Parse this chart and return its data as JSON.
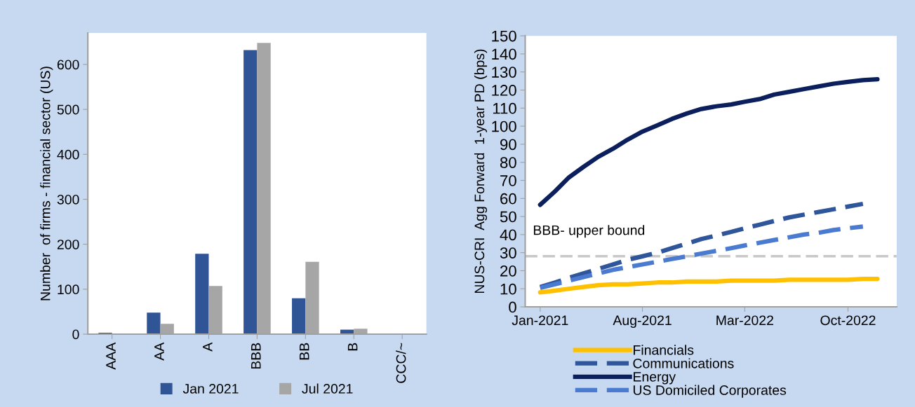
{
  "chart_data": [
    {
      "type": "bar",
      "ylabel": "Number  of firms - financial sector (US)",
      "categories": [
        "AAA",
        "AA",
        "A",
        "BBB",
        "BB",
        "B",
        "CCC/~"
      ],
      "series": [
        {
          "name": "Jan 2021",
          "color": "#2f5597",
          "values": [
            3,
            48,
            179,
            632,
            80,
            10,
            0
          ]
        },
        {
          "name": "Jul 2021",
          "color": "#a6a6a6",
          "values": [
            0,
            23,
            107,
            648,
            161,
            12,
            0
          ]
        }
      ],
      "ylim": [
        0,
        670
      ],
      "yticks": [
        0,
        100,
        200,
        300,
        400,
        500,
        600
      ],
      "grid": false,
      "legend": "bottom"
    },
    {
      "type": "line",
      "ylabel": "NUS-CRI  Agg Forward  1-year PD (bps)",
      "x": [
        "2021-01",
        "2021-02",
        "2021-03",
        "2021-04",
        "2021-05",
        "2021-06",
        "2021-07",
        "2021-08",
        "2021-09",
        "2021-10",
        "2021-11",
        "2021-12",
        "2022-01",
        "2022-02",
        "2022-03",
        "2022-04",
        "2022-05",
        "2022-06",
        "2022-07",
        "2022-08",
        "2022-09",
        "2022-10",
        "2022-11",
        "2022-12"
      ],
      "series": [
        {
          "name": "Financials",
          "color": "#ffc000",
          "line_style": "solid",
          "values": [
            8,
            9,
            10,
            11,
            12,
            12.5,
            12.5,
            13,
            13.5,
            13.5,
            14,
            14,
            14,
            14.5,
            14.5,
            14.5,
            14.5,
            15,
            15,
            15,
            15,
            15,
            15.5,
            15.5
          ]
        },
        {
          "name": "Communications",
          "color": "#2f559a",
          "line_style": "dashed",
          "values": [
            11,
            13.5,
            16,
            18.5,
            21,
            23.5,
            26,
            28,
            30,
            32.5,
            35,
            37.5,
            39.5,
            41.5,
            43.5,
            45.5,
            47.5,
            49.5,
            51,
            52.5,
            54,
            55.5,
            57,
            null
          ]
        },
        {
          "name": "Energy",
          "color": "#0a1f5c",
          "line_style": "solid",
          "values": [
            56.5,
            64,
            71.5,
            77.5,
            83,
            87.5,
            92.5,
            97,
            100.5,
            104,
            107,
            109.5,
            111,
            112,
            113.5,
            115,
            117.5,
            119,
            120.5,
            122,
            123.5,
            124.5,
            125.5,
            126
          ]
        },
        {
          "name": "US Domiciled Corporates",
          "color": "#4a7bd0",
          "line_style": "dashed",
          "values": [
            10.5,
            12.5,
            14.5,
            16.5,
            18.5,
            20.5,
            22,
            23.5,
            25,
            26.5,
            28,
            29.5,
            31,
            32.5,
            34,
            35.5,
            37,
            38.5,
            40,
            41,
            42.5,
            43.5,
            44.5,
            null
          ]
        }
      ],
      "ref_lines": [
        {
          "axis": "y",
          "value": 28,
          "label": "BBB- upper bound",
          "color": "#c8c8c8",
          "line_style": "dashed"
        }
      ],
      "xlim": [
        "2020-12-01",
        "2023-01-10"
      ],
      "xticks": [
        {
          "value": "2021-01",
          "label": "Jan-2021"
        },
        {
          "value": "2021-08",
          "label": "Aug-2021"
        },
        {
          "value": "2022-03",
          "label": "Mar-2022"
        },
        {
          "value": "2022-10",
          "label": "Oct-2022"
        }
      ],
      "ylim": [
        0,
        150
      ],
      "yticks": [
        0,
        10,
        20,
        30,
        40,
        50,
        60,
        70,
        80,
        90,
        100,
        110,
        120,
        130,
        140,
        150
      ],
      "grid": false,
      "legend": "bottom"
    }
  ]
}
